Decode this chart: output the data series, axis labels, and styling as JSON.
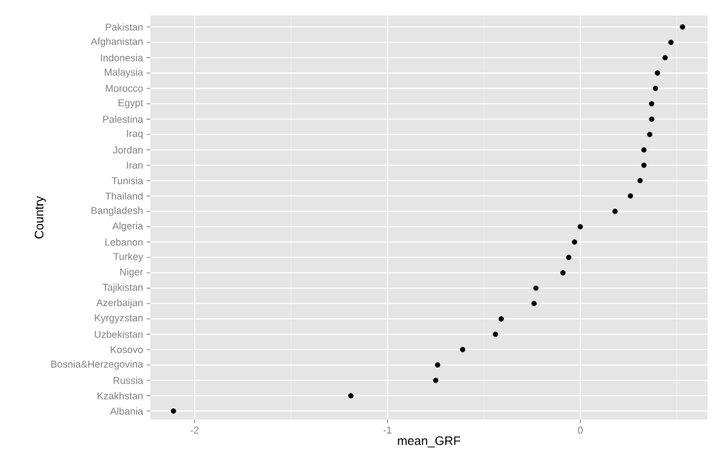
{
  "chart_data": {
    "type": "scatter",
    "orientation": "horizontal",
    "xlabel": "mean_GRF",
    "ylabel": "Country",
    "categories": [
      "Pakistan",
      "Afghanistan",
      "Indonesia",
      "Malaysia",
      "Morocco",
      "Egypt",
      "Palestina",
      "Iraq",
      "Jordan",
      "Iran",
      "Tunisia",
      "Thailand",
      "Bangladesh",
      "Algeria",
      "Lebanon",
      "Turkey",
      "Niger",
      "Tajikistan",
      "Azerbaijan",
      "Kyrgyzstan",
      "Uzbekistan",
      "Kosovo",
      "Bosnia&Herzegovina",
      "Russia",
      "Kzakhstan",
      "Albania"
    ],
    "values": [
      0.53,
      0.47,
      0.44,
      0.4,
      0.39,
      0.37,
      0.37,
      0.36,
      0.33,
      0.33,
      0.31,
      0.26,
      0.18,
      0.0,
      -0.03,
      -0.06,
      -0.09,
      -0.23,
      -0.24,
      -0.41,
      -0.44,
      -0.61,
      -0.74,
      -0.75,
      -1.19,
      -2.11
    ],
    "color": "#000000",
    "marker": "circle",
    "grid": true,
    "xlim": [
      -2.23,
      0.66
    ],
    "xticks": [
      -2,
      -1,
      0
    ]
  }
}
